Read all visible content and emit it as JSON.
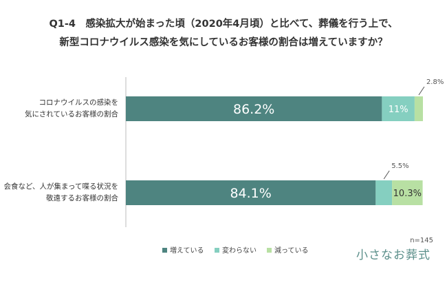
{
  "title": {
    "line1": "Q1-4　感染拡大が始まった頃（2020年4月頃）と比べて、葬儀を行う上で、",
    "line2": "新型コロナウイルス感染を気にしているお客様の割合は増えていますか？"
  },
  "chart_data": {
    "type": "bar",
    "orientation": "horizontal",
    "stacked": true,
    "xlim": [
      0,
      100
    ],
    "unit": "%",
    "categories": [
      [
        "コロナウイルスの感染を",
        "気にされているお客様の割合"
      ],
      [
        "会食など、人が集まって喋る状況を",
        "敬遠するお客様の割合"
      ]
    ],
    "series": [
      {
        "name": "増えている",
        "values": [
          86.2,
          84.1
        ],
        "labels": [
          "86.2%",
          "84.1%"
        ],
        "color": "#4e8480"
      },
      {
        "name": "変わらない",
        "values": [
          11,
          5.5
        ],
        "labels": [
          "11%",
          "5.5%"
        ],
        "color": "#85cfc0"
      },
      {
        "name": "減っている",
        "values": [
          2.8,
          10.3
        ],
        "labels": [
          "2.8%",
          "10.3%"
        ],
        "color": "#b8e0a3"
      }
    ],
    "legend": "bottom"
  },
  "footer": {
    "n": "n=145",
    "brand": "小さなお葬式"
  },
  "colors": {
    "axis": "#bbbbbb",
    "callout": "#555555"
  }
}
